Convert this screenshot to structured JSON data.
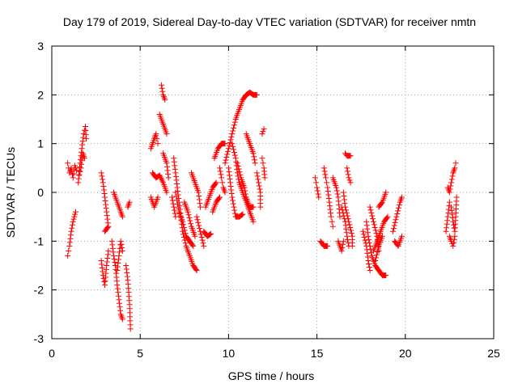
{
  "chart_data": {
    "type": "scatter",
    "title": "Day 179 of 2019, Sidereal Day-to-day VTEC variation (SDTVAR) for receiver nmtn",
    "xlabel": "GPS time / hours",
    "ylabel": "SDTVAR / TECUs",
    "xlim": [
      0,
      25
    ],
    "ylim": [
      -3,
      3
    ],
    "xticks": [
      0,
      5,
      10,
      15,
      20,
      25
    ],
    "yticks": [
      -3,
      -2,
      -1,
      0,
      1,
      2,
      3
    ],
    "grid": true,
    "marker": "+",
    "color": "#ff0000",
    "segments": [
      [
        [
          0.9,
          -1.3
        ],
        [
          1.0,
          -1.1
        ],
        [
          1.1,
          -0.8
        ],
        [
          1.2,
          -0.6
        ],
        [
          1.35,
          -0.4
        ]
      ],
      [
        [
          0.9,
          0.6
        ],
        [
          1.0,
          0.4
        ],
        [
          1.1,
          0.5
        ],
        [
          1.2,
          0.3
        ],
        [
          1.3,
          0.55
        ],
        [
          1.4,
          0.45
        ]
      ],
      [
        [
          1.5,
          0.2
        ],
        [
          1.6,
          0.6
        ],
        [
          1.7,
          0.9
        ],
        [
          1.8,
          1.2
        ],
        [
          1.9,
          1.35
        ],
        [
          1.95,
          1.1
        ]
      ],
      [
        [
          1.55,
          0.35
        ],
        [
          1.65,
          0.5
        ],
        [
          1.75,
          0.8
        ],
        [
          1.85,
          0.7
        ]
      ],
      [
        [
          2.8,
          0.4
        ],
        [
          2.9,
          0.2
        ],
        [
          3.0,
          -0.1
        ],
        [
          3.1,
          -0.4
        ],
        [
          3.2,
          -0.7
        ],
        [
          3.0,
          -0.8
        ]
      ],
      [
        [
          2.8,
          -1.4
        ],
        [
          2.9,
          -1.7
        ],
        [
          3.0,
          -1.9
        ],
        [
          3.1,
          -1.5
        ],
        [
          3.2,
          -1.2
        ]
      ],
      [
        [
          3.4,
          -1.0
        ],
        [
          3.5,
          -1.3
        ],
        [
          3.6,
          -1.5
        ],
        [
          3.7,
          -1.9
        ],
        [
          3.8,
          -2.2
        ],
        [
          3.9,
          -2.5
        ],
        [
          4.0,
          -2.6
        ]
      ],
      [
        [
          3.5,
          0.0
        ],
        [
          3.7,
          -0.2
        ],
        [
          3.9,
          -0.4
        ],
        [
          4.0,
          -0.5
        ]
      ],
      [
        [
          3.7,
          -1.6
        ],
        [
          3.8,
          -1.3
        ],
        [
          3.9,
          -1.0
        ],
        [
          4.0,
          -1.2
        ]
      ],
      [
        [
          4.2,
          -1.5
        ],
        [
          4.3,
          -1.8
        ],
        [
          4.4,
          -2.3
        ],
        [
          4.45,
          -2.8
        ]
      ],
      [
        [
          4.3,
          -0.3
        ],
        [
          4.4,
          -0.2
        ]
      ],
      [
        [
          5.6,
          0.9
        ],
        [
          5.8,
          1.1
        ],
        [
          5.9,
          1.2
        ],
        [
          6.0,
          1.0
        ]
      ],
      [
        [
          6.2,
          2.2
        ],
        [
          6.3,
          2.0
        ],
        [
          6.4,
          1.9
        ]
      ],
      [
        [
          6.1,
          1.6
        ],
        [
          6.3,
          1.4
        ],
        [
          6.5,
          1.2
        ]
      ],
      [
        [
          5.7,
          0.4
        ],
        [
          5.9,
          0.3
        ],
        [
          6.1,
          0.35
        ],
        [
          6.3,
          0.2
        ],
        [
          6.5,
          0.0
        ]
      ],
      [
        [
          5.6,
          -0.1
        ],
        [
          5.8,
          -0.3
        ],
        [
          6.0,
          -0.1
        ]
      ],
      [
        [
          6.3,
          0.8
        ],
        [
          6.5,
          0.6
        ],
        [
          6.6,
          0.3
        ]
      ],
      [
        [
          6.9,
          0.7
        ],
        [
          7.0,
          0.4
        ],
        [
          7.1,
          0.1
        ],
        [
          7.2,
          -0.2
        ],
        [
          7.3,
          -0.5
        ],
        [
          7.4,
          -0.8
        ],
        [
          7.6,
          -1.1
        ],
        [
          7.8,
          -1.3
        ],
        [
          8.0,
          -1.5
        ],
        [
          8.2,
          -1.6
        ]
      ],
      [
        [
          7.0,
          0.0
        ],
        [
          7.2,
          -0.4
        ],
        [
          7.4,
          -0.6
        ],
        [
          7.6,
          -0.9
        ],
        [
          7.8,
          -1.0
        ],
        [
          8.0,
          -1.1
        ]
      ],
      [
        [
          6.8,
          -0.1
        ],
        [
          6.9,
          -0.3
        ],
        [
          7.0,
          -0.5
        ]
      ],
      [
        [
          7.5,
          -0.2
        ],
        [
          7.7,
          -0.4
        ],
        [
          7.9,
          -0.7
        ],
        [
          8.1,
          -0.9
        ]
      ],
      [
        [
          7.9,
          0.4
        ],
        [
          8.1,
          0.2
        ],
        [
          8.3,
          0.0
        ],
        [
          8.4,
          -0.3
        ]
      ],
      [
        [
          8.2,
          -0.5
        ],
        [
          8.4,
          -0.8
        ],
        [
          8.6,
          -1.1
        ]
      ],
      [
        [
          8.6,
          -0.8
        ],
        [
          8.8,
          -0.9
        ],
        [
          9.0,
          -0.85
        ]
      ],
      [
        [
          8.7,
          -0.3
        ],
        [
          8.9,
          -0.1
        ],
        [
          9.1,
          0.1
        ],
        [
          9.3,
          0.2
        ]
      ],
      [
        [
          9.2,
          0.7
        ],
        [
          9.4,
          0.9
        ],
        [
          9.6,
          1.0
        ],
        [
          9.8,
          1.0
        ]
      ],
      [
        [
          9.5,
          0.5
        ],
        [
          9.6,
          0.3
        ],
        [
          9.7,
          0.1
        ],
        [
          9.8,
          0.0
        ]
      ],
      [
        [
          9.1,
          -0.4
        ],
        [
          9.3,
          -0.2
        ],
        [
          9.5,
          -0.1
        ]
      ],
      [
        [
          9.8,
          0.6
        ],
        [
          10.0,
          0.9
        ],
        [
          10.2,
          1.2
        ],
        [
          10.4,
          1.5
        ],
        [
          10.6,
          1.7
        ],
        [
          10.8,
          1.9
        ],
        [
          11.0,
          2.0
        ],
        [
          11.2,
          2.05
        ],
        [
          11.4,
          2.0
        ],
        [
          11.6,
          2.0
        ]
      ],
      [
        [
          10.0,
          0.5
        ],
        [
          10.1,
          0.2
        ],
        [
          10.2,
          -0.1
        ],
        [
          10.3,
          -0.3
        ],
        [
          10.4,
          -0.5
        ],
        [
          10.6,
          -0.5
        ],
        [
          10.8,
          -0.45
        ]
      ],
      [
        [
          10.2,
          1.0
        ],
        [
          10.4,
          0.7
        ],
        [
          10.5,
          0.4
        ],
        [
          10.6,
          0.2
        ],
        [
          10.8,
          0.0
        ],
        [
          11.0,
          -0.2
        ],
        [
          11.2,
          -0.4
        ],
        [
          11.4,
          -0.6
        ]
      ],
      [
        [
          10.5,
          0.6
        ],
        [
          10.7,
          0.3
        ],
        [
          10.9,
          0.1
        ],
        [
          11.0,
          -0.1
        ],
        [
          11.2,
          -0.3
        ],
        [
          11.4,
          -0.3
        ]
      ],
      [
        [
          11.0,
          1.2
        ],
        [
          11.2,
          1.0
        ],
        [
          11.4,
          0.8
        ],
        [
          11.5,
          0.6
        ]
      ],
      [
        [
          11.6,
          0.4
        ],
        [
          11.7,
          0.2
        ],
        [
          11.8,
          0.0
        ],
        [
          11.8,
          -0.3
        ]
      ],
      [
        [
          11.9,
          1.2
        ],
        [
          12.0,
          1.3
        ]
      ],
      [
        [
          11.9,
          0.7
        ],
        [
          12.0,
          0.5
        ],
        [
          12.05,
          0.3
        ]
      ],
      [
        [
          14.9,
          0.3
        ],
        [
          15.0,
          0.1
        ],
        [
          15.1,
          -0.1
        ]
      ],
      [
        [
          15.2,
          -1.0
        ],
        [
          15.4,
          -1.1
        ],
        [
          15.6,
          -1.1
        ]
      ],
      [
        [
          15.4,
          0.5
        ],
        [
          15.5,
          0.3
        ],
        [
          15.6,
          0.1
        ],
        [
          15.7,
          -0.2
        ],
        [
          15.8,
          -0.5
        ],
        [
          15.9,
          -0.7
        ]
      ],
      [
        [
          15.9,
          0.3
        ],
        [
          16.1,
          0.1
        ],
        [
          16.2,
          -0.1
        ],
        [
          16.3,
          -0.5
        ]
      ],
      [
        [
          16.4,
          -0.3
        ],
        [
          16.6,
          -0.6
        ],
        [
          16.7,
          -0.9
        ],
        [
          16.8,
          -1.1
        ]
      ],
      [
        [
          16.5,
          0.0
        ],
        [
          16.6,
          -0.3
        ],
        [
          16.8,
          -0.6
        ],
        [
          17.0,
          -0.9
        ],
        [
          17.0,
          -1.1
        ]
      ],
      [
        [
          16.6,
          0.8
        ],
        [
          16.7,
          0.75
        ],
        [
          16.9,
          0.75
        ]
      ],
      [
        [
          16.2,
          -1.0
        ],
        [
          16.4,
          -1.2
        ],
        [
          16.5,
          -1.0
        ]
      ],
      [
        [
          16.7,
          0.5
        ],
        [
          16.8,
          0.3
        ],
        [
          16.9,
          0.2
        ]
      ],
      [
        [
          17.8,
          -0.6
        ],
        [
          17.9,
          -0.9
        ],
        [
          18.0,
          -1.1
        ],
        [
          18.1,
          -1.3
        ],
        [
          18.3,
          -1.5
        ],
        [
          18.5,
          -1.6
        ],
        [
          18.7,
          -1.7
        ],
        [
          18.9,
          -1.7
        ]
      ],
      [
        [
          17.6,
          -0.8
        ],
        [
          17.8,
          -1.1
        ],
        [
          17.9,
          -1.4
        ],
        [
          18.0,
          -1.6
        ]
      ],
      [
        [
          18.0,
          -0.3
        ],
        [
          18.2,
          -0.6
        ],
        [
          18.4,
          -0.9
        ],
        [
          18.5,
          -1.2
        ]
      ],
      [
        [
          18.2,
          -1.2
        ],
        [
          18.4,
          -1.0
        ],
        [
          18.6,
          -0.8
        ],
        [
          18.8,
          -0.6
        ],
        [
          19.0,
          -0.5
        ]
      ],
      [
        [
          18.5,
          -0.3
        ],
        [
          18.7,
          -0.2
        ],
        [
          18.9,
          0.0
        ]
      ],
      [
        [
          18.3,
          -1.4
        ],
        [
          18.5,
          -1.1
        ],
        [
          18.7,
          -0.9
        ]
      ],
      [
        [
          19.3,
          -0.8
        ],
        [
          19.5,
          -0.5
        ],
        [
          19.7,
          -0.2
        ],
        [
          19.8,
          -0.1
        ]
      ],
      [
        [
          19.4,
          -1.0
        ],
        [
          19.6,
          -1.1
        ],
        [
          19.8,
          -0.9
        ]
      ],
      [
        [
          22.3,
          -0.8
        ],
        [
          22.4,
          -0.5
        ],
        [
          22.5,
          -0.2
        ]
      ],
      [
        [
          22.4,
          0.1
        ],
        [
          22.5,
          0.0
        ],
        [
          22.6,
          0.2
        ],
        [
          22.7,
          0.4
        ],
        [
          22.8,
          0.5
        ],
        [
          22.85,
          0.6
        ]
      ],
      [
        [
          22.5,
          -0.9
        ],
        [
          22.6,
          -1.0
        ],
        [
          22.7,
          -1.1
        ],
        [
          22.8,
          -0.9
        ]
      ],
      [
        [
          22.6,
          -0.3
        ],
        [
          22.7,
          -0.6
        ],
        [
          22.8,
          -0.8
        ],
        [
          22.85,
          -0.5
        ],
        [
          22.9,
          -0.1
        ]
      ]
    ]
  }
}
